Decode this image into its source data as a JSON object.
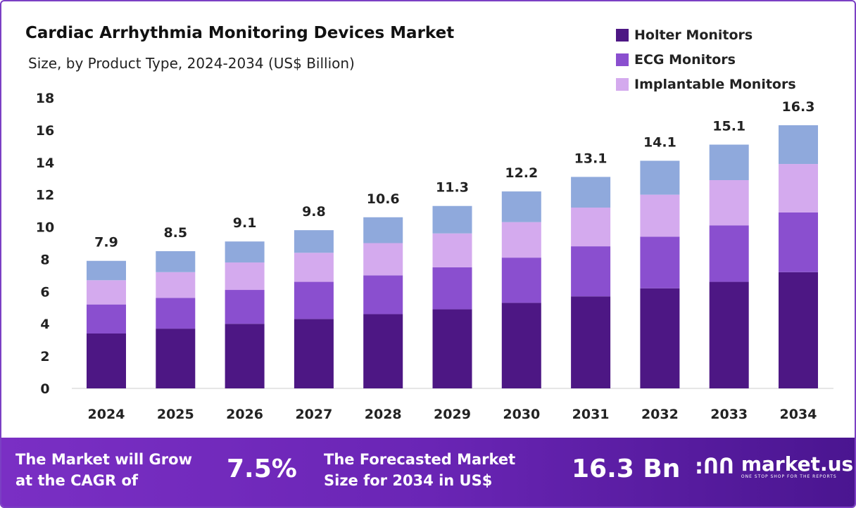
{
  "chart_data": {
    "type": "bar",
    "stacked": true,
    "title": "Cardiac Arrhythmia Monitoring Devices Market",
    "subtitle": "Size, by Product Type, 2024-2034 (US$ Billion)",
    "xlabel": "",
    "ylabel": "",
    "ylim": [
      0,
      18
    ],
    "yticks": [
      0,
      2,
      4,
      6,
      8,
      10,
      12,
      14,
      16,
      18
    ],
    "categories": [
      "2024",
      "2025",
      "2026",
      "2027",
      "2028",
      "2029",
      "2030",
      "2031",
      "2032",
      "2033",
      "2034"
    ],
    "totals": [
      "7.9",
      "8.5",
      "9.1",
      "9.8",
      "10.6",
      "11.3",
      "12.2",
      "13.1",
      "14.1",
      "15.1",
      "16.3"
    ],
    "series": [
      {
        "name": "Holter Monitors",
        "color": "#4d1784",
        "values": [
          3.4,
          3.7,
          4.0,
          4.3,
          4.6,
          4.9,
          5.3,
          5.7,
          6.2,
          6.6,
          7.2
        ]
      },
      {
        "name": "ECG Monitors",
        "color": "#8a4fcf",
        "values": [
          1.8,
          1.9,
          2.1,
          2.3,
          2.4,
          2.6,
          2.8,
          3.1,
          3.2,
          3.5,
          3.7
        ]
      },
      {
        "name": "Implantable Monitors",
        "color": "#d4aaee",
        "values": [
          1.5,
          1.6,
          1.7,
          1.8,
          2.0,
          2.1,
          2.2,
          2.4,
          2.6,
          2.8,
          3.0
        ]
      },
      {
        "name": "",
        "color": "#8fa9dc",
        "values": [
          1.2,
          1.3,
          1.3,
          1.4,
          1.6,
          1.7,
          1.9,
          1.9,
          2.1,
          2.2,
          2.4
        ]
      }
    ],
    "legend_position": "top-right",
    "grid": false
  },
  "footer": {
    "cagr_label_1": "The Market will Grow",
    "cagr_label_2": "at the CAGR of",
    "cagr_value": "7.5%",
    "forecast_label_1": "The Forecasted Market",
    "forecast_label_2": "Size for 2034 in US$",
    "forecast_value": "16.3 Bn",
    "brand": "market.us",
    "tagline": "ONE STOP SHOP FOR THE REPORTS"
  }
}
